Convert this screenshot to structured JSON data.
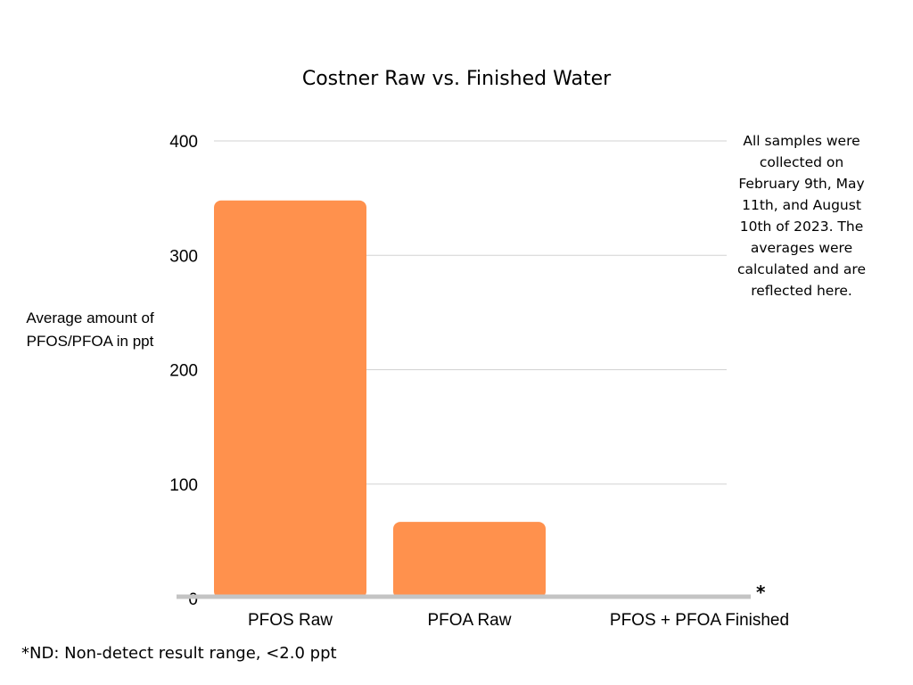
{
  "chart_data": {
    "type": "bar",
    "title": "Costner Raw vs. Finished Water",
    "xlabel": "",
    "ylabel": "Average amount of PFOS/PFOA in ppt",
    "categories": [
      "PFOS Raw",
      "PFOA Raw",
      "PFOS + PFOA Finished"
    ],
    "values": [
      348,
      67,
      0
    ],
    "ylim": [
      0,
      400
    ],
    "yticks": [
      0,
      100,
      200,
      300,
      400
    ],
    "grid": true,
    "bar_color": "#FF914D",
    "annotation": "All samples were collected on February 9th, May 11th, and August 10th of 2023. The averages were calculated and are reflected here.",
    "nd_marker": "*",
    "footnote": "*ND: Non-detect result range, <2.0 ppt"
  }
}
